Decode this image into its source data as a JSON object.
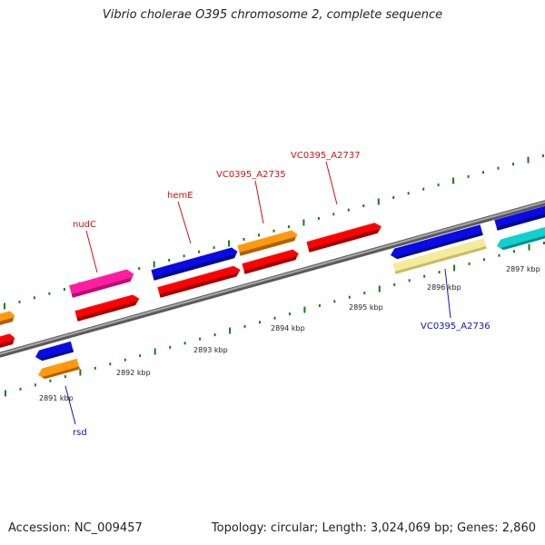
{
  "title": "Vibrio cholerae O395 chromosome 2, complete sequence",
  "footer": {
    "accession": "Accession: NC_009457",
    "topology": "Topology: circular; Length: 3,024,069 bp; Genes: 2,860"
  },
  "ticks": [
    "2891 kbp",
    "2892 kbp",
    "2893 kbp",
    "2894 kbp",
    "2895 kbp",
    "2896 kbp",
    "2897 kbp"
  ],
  "genes": [
    {
      "name": "nudC",
      "strand": "forward"
    },
    {
      "name": "hemE",
      "strand": "forward"
    },
    {
      "name": "VC0395_A2735",
      "strand": "forward"
    },
    {
      "name": "VC0395_A2737",
      "strand": "forward"
    },
    {
      "name": "VC0395_A2736",
      "strand": "reverse"
    },
    {
      "name": "rsd",
      "strand": "reverse"
    }
  ],
  "colors": {
    "backbone": "#808080",
    "red": "#ff0000",
    "blue": "#0a0ae6",
    "orange": "#ff9a10",
    "magenta": "#ff1ea0",
    "cyan": "#10d0d0",
    "pale_yellow": "#f4ec9c",
    "tick_green": "#1a7a1a",
    "label_red": "#d01010",
    "label_blue": "#1010c0"
  }
}
